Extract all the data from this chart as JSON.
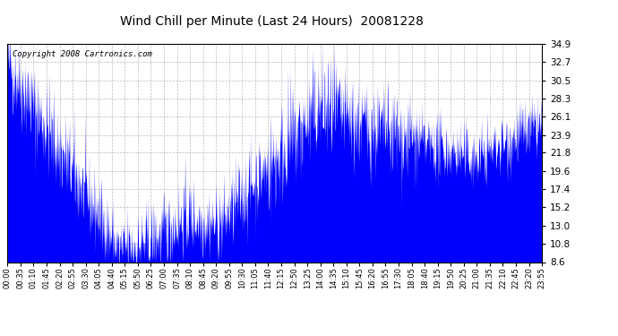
{
  "title": "Wind Chill per Minute (Last 24 Hours)  20081228",
  "copyright": "Copyright 2008 Cartronics.com",
  "line_color": "#0000FF",
  "bg_color": "#FFFFFF",
  "plot_bg_color": "#FFFFFF",
  "grid_color": "#AAAAAA",
  "yticks": [
    8.6,
    10.8,
    13.0,
    15.2,
    17.4,
    19.6,
    21.8,
    23.9,
    26.1,
    28.3,
    30.5,
    32.7,
    34.9
  ],
  "ylim": [
    8.6,
    34.9
  ],
  "xtick_labels": [
    "00:00",
    "00:35",
    "01:10",
    "01:45",
    "02:20",
    "02:55",
    "03:30",
    "04:05",
    "04:40",
    "05:15",
    "05:50",
    "06:25",
    "07:00",
    "07:35",
    "08:10",
    "08:45",
    "09:20",
    "09:55",
    "10:30",
    "11:05",
    "11:40",
    "12:15",
    "12:50",
    "13:25",
    "14:00",
    "14:35",
    "15:10",
    "15:45",
    "16:20",
    "16:55",
    "17:30",
    "18:05",
    "18:40",
    "19:15",
    "19:50",
    "20:25",
    "21:00",
    "21:35",
    "22:10",
    "22:45",
    "23:20",
    "23:55"
  ]
}
